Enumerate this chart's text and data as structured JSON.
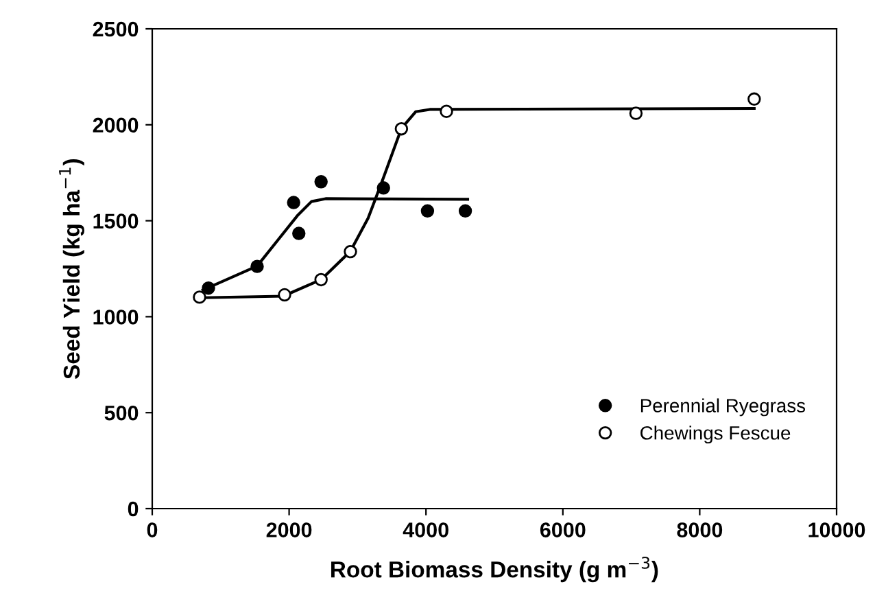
{
  "chart_data": {
    "type": "scatter",
    "xlabel": "Root Biomass Density (g m$^{−3}$)",
    "ylabel": "Seed Yield (kg ha$^{−1}$)",
    "xlim": [
      0,
      10000
    ],
    "ylim": [
      0,
      2500
    ],
    "xticks": [
      0,
      2000,
      4000,
      6000,
      8000,
      10000
    ],
    "yticks": [
      0,
      500,
      1000,
      1500,
      2000,
      2500
    ],
    "grid": false,
    "legend": "bottom right",
    "series": [
      {
        "name": "Perennial Ryegrass",
        "marker": "circle",
        "color": "#000000",
        "x": [
          822,
          1533,
          2066,
          2142,
          2467,
          3379,
          4022,
          4575
        ],
        "values": [
          1149,
          1262,
          1595,
          1434,
          1703,
          1671,
          1551,
          1551
        ]
      },
      {
        "name": "Chewings Fescue",
        "marker": "circle",
        "color": "#ffffff",
        "x": [
          691,
          1934,
          2467,
          2896,
          3641,
          4299,
          7068,
          8796
        ],
        "values": [
          1102,
          1114,
          1193,
          1339,
          1979,
          2070,
          2060,
          2134
        ]
      },
      {
        "type": "line",
        "color": "#000000",
        "x": [
          740,
          1533,
          1844,
          2120,
          2327,
          2534,
          4609
        ],
        "values": [
          1139,
          1264,
          1403,
          1526,
          1600,
          1615,
          1612
        ]
      },
      {
        "type": "line",
        "color": "#000000",
        "x": [
          740,
          1913,
          2467,
          2896,
          3155,
          3365,
          3641,
          3849,
          4056,
          8796
        ],
        "values": [
          1099,
          1107,
          1193,
          1341,
          1514,
          1711,
          1981,
          2068,
          2080,
          2085
        ]
      }
    ]
  }
}
